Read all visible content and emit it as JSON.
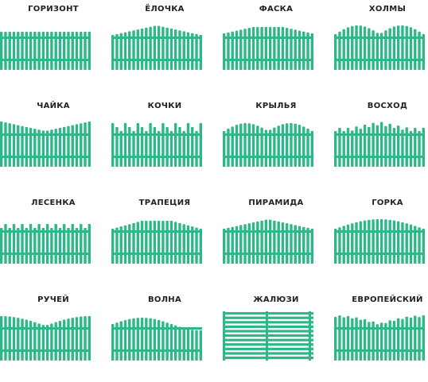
{
  "colors": {
    "fence": "#2fb78a",
    "title": "#222222",
    "background": "#ffffff"
  },
  "fence_types": [
    {
      "id": "gorizont",
      "label": "ГОРИЗОНТ",
      "shape": "flat"
    },
    {
      "id": "elochka",
      "label": "ЁЛОЧКА",
      "shape": "peak-triangle"
    },
    {
      "id": "faska",
      "label": "ФАСКА",
      "shape": "chamfer"
    },
    {
      "id": "holmy",
      "label": "ХОЛМЫ",
      "shape": "double-hill"
    },
    {
      "id": "chaika",
      "label": "ЧАЙКА",
      "shape": "valley"
    },
    {
      "id": "kochki",
      "label": "КОЧКИ",
      "shape": "bumps"
    },
    {
      "id": "krylya",
      "label": "КРЫЛЬЯ",
      "shape": "wings"
    },
    {
      "id": "voshod",
      "label": "ВОСХОД",
      "shape": "sunrise"
    },
    {
      "id": "lesenka",
      "label": "ЛЕСЕНКА",
      "shape": "steps"
    },
    {
      "id": "trapeciya",
      "label": "ТРАПЕЦИЯ",
      "shape": "trapezoid"
    },
    {
      "id": "piramida",
      "label": "ПИРАМИДА",
      "shape": "pyramid"
    },
    {
      "id": "gorka",
      "label": "ГОРКА",
      "shape": "arch"
    },
    {
      "id": "ruchei",
      "label": "РУЧЕЙ",
      "shape": "dip"
    },
    {
      "id": "volna",
      "label": "ВОЛНА",
      "shape": "wave"
    },
    {
      "id": "zhaluzi",
      "label": "ЖАЛЮЗИ",
      "shape": "louver"
    },
    {
      "id": "evropeiskiy",
      "label": "ЕВРОПЕЙСКИЙ",
      "shape": "euro"
    }
  ]
}
